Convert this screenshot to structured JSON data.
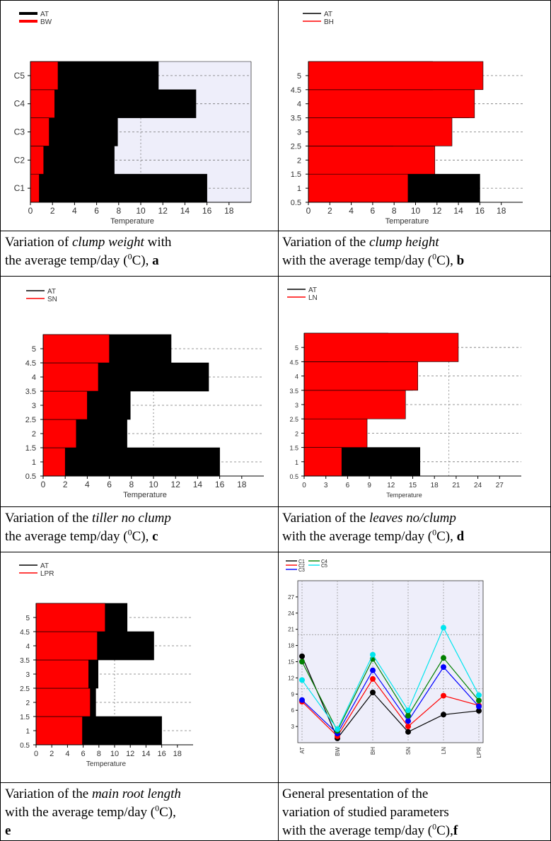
{
  "captions": [
    {
      "id": "a",
      "line1_pre": "Variation of ",
      "line1_em": "clump weight",
      "line1_post": " with",
      "line2_pre": "the average temp/day (",
      "line2_sup": "0",
      "line2_post": "C), ",
      "letter": "a"
    },
    {
      "id": "b",
      "line1_pre": "Variation of the ",
      "line1_em": "clump height",
      "line1_post": "",
      "line2_pre": "with the average temp/day (",
      "line2_sup": "0",
      "line2_post": "C), ",
      "letter": "b"
    },
    {
      "id": "c",
      "line1_pre": "Variation of the ",
      "line1_em": "tiller no clump",
      "line1_post": "",
      "line2_pre": "the average temp/day (",
      "line2_sup": "0",
      "line2_post": "C), ",
      "letter": "c"
    },
    {
      "id": "d",
      "line1_pre": "Variation of the ",
      "line1_em": "leaves no/clump",
      "line1_post": "",
      "line2_pre": "with the average temp/day (",
      "line2_sup": "0",
      "line2_post": "C), ",
      "letter": "d"
    },
    {
      "id": "e",
      "line1_pre": "Variation of the ",
      "line1_em": "main root length",
      "line1_post": "",
      "line2_pre": "with the average temp/day (",
      "line2_sup": "0",
      "line2_post": "C),",
      "letter": "e"
    },
    {
      "id": "f",
      "line1_pre": "General presentation of the",
      "line1_em": "",
      "line1_post": "",
      "line2_pre": "variation of studied parameters",
      "line2_sup": "",
      "line2_post": "",
      "line3_pre": "with the average temp/day (",
      "line3_sup": "0",
      "line3_post": "C),",
      "letter": "f"
    }
  ],
  "colors": {
    "at": "#000000",
    "param": "#ff0000",
    "panel_bg": "#eeeefa",
    "c1": "#000000",
    "c2": "#ff0000",
    "c3": "#0000ff",
    "c4": "#008000",
    "c5": "#00e5ee"
  },
  "chart_data": [
    {
      "id": "a",
      "type": "bar",
      "orientation": "horizontal",
      "categories": [
        "C1",
        "C2",
        "C3",
        "C4",
        "C5"
      ],
      "series": [
        {
          "name": "AT",
          "values": [
            16,
            7.6,
            7.9,
            15,
            11.6
          ]
        },
        {
          "name": "BW",
          "values": [
            0.8,
            1.2,
            1.7,
            2.2,
            2.5
          ]
        }
      ],
      "xlabel": "Temperature",
      "xlim": [
        0,
        20
      ],
      "xticks": [
        0,
        2,
        4,
        6,
        8,
        10,
        12,
        14,
        16,
        18
      ],
      "background": "#eeeefa"
    },
    {
      "id": "b",
      "type": "bar",
      "orientation": "horizontal",
      "categories": [
        "1",
        "2",
        "3",
        "4",
        "5"
      ],
      "yticks": [
        "0.5",
        "1",
        "1.5",
        "2",
        "2.5",
        "3",
        "3.5",
        "4",
        "4.5",
        "5"
      ],
      "series": [
        {
          "name": "AT",
          "values": [
            16,
            7.6,
            7.9,
            15,
            11.6
          ]
        },
        {
          "name": "BH",
          "values": [
            9.3,
            11.8,
            13.4,
            15.5,
            16.3
          ]
        }
      ],
      "xlabel": "Temperature",
      "xlim": [
        0,
        20
      ],
      "xticks": [
        0,
        2,
        4,
        6,
        8,
        10,
        12,
        14,
        16,
        18
      ]
    },
    {
      "id": "c",
      "type": "bar",
      "orientation": "horizontal",
      "categories": [
        "1",
        "2",
        "3",
        "4",
        "5"
      ],
      "yticks": [
        "0.5",
        "1",
        "1.5",
        "2",
        "2.5",
        "3",
        "3.5",
        "4",
        "4.5",
        "5"
      ],
      "series": [
        {
          "name": "AT",
          "values": [
            16,
            7.6,
            7.9,
            15,
            11.6
          ]
        },
        {
          "name": "SN",
          "values": [
            2,
            3,
            4,
            5,
            6
          ]
        }
      ],
      "xlabel": "Temperature",
      "xlim": [
        0,
        20
      ],
      "xticks": [
        0,
        2,
        4,
        6,
        8,
        10,
        12,
        14,
        16,
        18
      ]
    },
    {
      "id": "d",
      "type": "bar",
      "orientation": "horizontal",
      "categories": [
        "1",
        "2",
        "3",
        "4",
        "5"
      ],
      "yticks": [
        "0.5",
        "1",
        "1.5",
        "2",
        "2.5",
        "3",
        "3.5",
        "4",
        "4.5",
        "5"
      ],
      "series": [
        {
          "name": "AT",
          "values": [
            16,
            7.6,
            7.9,
            15,
            11.6
          ]
        },
        {
          "name": "LN",
          "values": [
            5.2,
            8.7,
            14,
            15.7,
            21.3
          ]
        }
      ],
      "xlabel": "Temperature",
      "xlim": [
        0,
        30
      ],
      "xticks": [
        0,
        3,
        6,
        9,
        12,
        15,
        18,
        21,
        24,
        27
      ]
    },
    {
      "id": "e",
      "type": "bar",
      "orientation": "horizontal",
      "categories": [
        "1",
        "2",
        "3",
        "4",
        "5"
      ],
      "yticks": [
        "0.5",
        "1",
        "1.5",
        "2",
        "2.5",
        "3",
        "3.5",
        "4",
        "4.5",
        "5"
      ],
      "series": [
        {
          "name": "AT",
          "values": [
            16,
            7.6,
            7.9,
            15,
            11.6
          ]
        },
        {
          "name": "LPR",
          "values": [
            5.9,
            6.9,
            6.7,
            7.8,
            8.8
          ]
        }
      ],
      "xlabel": "Temperature",
      "xlim": [
        0,
        20
      ],
      "xticks": [
        0,
        2,
        4,
        6,
        8,
        10,
        12,
        14,
        16,
        18
      ]
    },
    {
      "id": "f",
      "type": "line",
      "categories": [
        "AT",
        "BW",
        "BH",
        "SN",
        "LN",
        "LPR"
      ],
      "series": [
        {
          "name": "C1",
          "values": [
            16,
            0.8,
            9.3,
            2,
            5.2,
            5.9
          ]
        },
        {
          "name": "C2",
          "values": [
            7.6,
            1.2,
            11.8,
            3,
            8.7,
            6.9
          ]
        },
        {
          "name": "C3",
          "values": [
            7.9,
            1.7,
            13.4,
            4,
            14,
            6.7
          ]
        },
        {
          "name": "C4",
          "values": [
            15,
            2.2,
            15.5,
            5,
            15.7,
            7.8
          ]
        },
        {
          "name": "C5",
          "values": [
            11.6,
            2.5,
            16.3,
            6,
            21.3,
            8.8
          ]
        }
      ],
      "ylim": [
        0,
        30
      ],
      "yticks": [
        3,
        6,
        9,
        12,
        15,
        18,
        21,
        24,
        27
      ],
      "background": "#eeeefa"
    }
  ]
}
